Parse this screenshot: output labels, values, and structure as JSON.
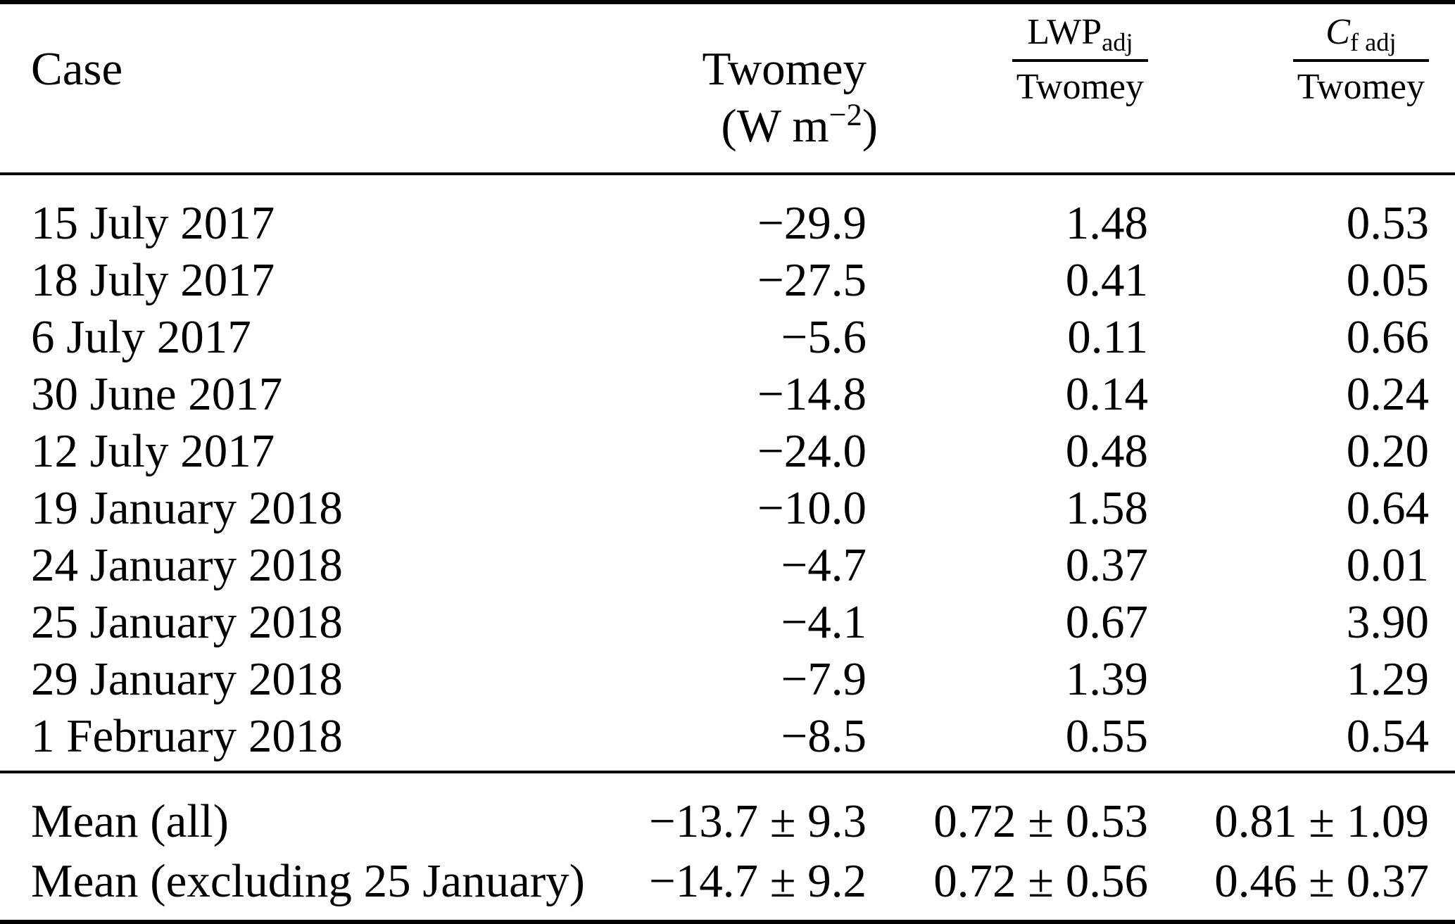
{
  "table": {
    "header": {
      "case_label": "Case",
      "twomey_label": "Twomey",
      "twomey_unit_open": "(W m",
      "twomey_unit_exp": "−2",
      "twomey_unit_close": ")",
      "lwp_fraction": {
        "num_base": "LWP",
        "num_sub": "adj",
        "den": "Twomey"
      },
      "cf_fraction": {
        "num_base": "C",
        "num_sub": "f adj",
        "den": "Twomey"
      }
    },
    "rows": [
      {
        "case": "15 July 2017",
        "twomey": "−29.9",
        "lwp": "1.48",
        "cf": "0.53"
      },
      {
        "case": "18 July 2017",
        "twomey": "−27.5",
        "lwp": "0.41",
        "cf": "0.05"
      },
      {
        "case": "6 July 2017",
        "twomey": "−5.6",
        "lwp": "0.11",
        "cf": "0.66"
      },
      {
        "case": "30 June 2017",
        "twomey": "−14.8",
        "lwp": "0.14",
        "cf": "0.24"
      },
      {
        "case": "12 July 2017",
        "twomey": "−24.0",
        "lwp": "0.48",
        "cf": "0.20"
      },
      {
        "case": "19 January 2018",
        "twomey": "−10.0",
        "lwp": "1.58",
        "cf": "0.64"
      },
      {
        "case": "24 January 2018",
        "twomey": "−4.7",
        "lwp": "0.37",
        "cf": "0.01"
      },
      {
        "case": "25 January 2018",
        "twomey": "−4.1",
        "lwp": "0.67",
        "cf": "3.90"
      },
      {
        "case": "29 January 2018",
        "twomey": "−7.9",
        "lwp": "1.39",
        "cf": "1.29"
      },
      {
        "case": "1 February 2018",
        "twomey": "−8.5",
        "lwp": "0.55",
        "cf": "0.54"
      }
    ],
    "summary_rows": [
      {
        "case": "Mean (all)",
        "twomey": "−13.7 ± 9.3",
        "lwp": "0.72 ± 0.53",
        "cf": "0.81 ± 1.09"
      },
      {
        "case": "Mean (excluding 25 January)",
        "twomey": "−14.7 ± 9.2",
        "lwp": "0.72 ± 0.56",
        "cf": "0.46 ± 0.37"
      }
    ]
  }
}
